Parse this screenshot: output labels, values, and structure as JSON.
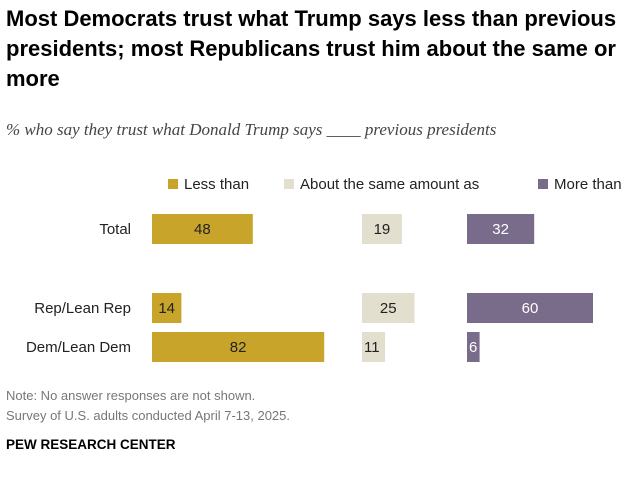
{
  "title": "Most Democrats trust what Trump says less than previous presidents; most Republicans trust him about the same or more",
  "subtitle": "% who say they trust what Donald Trump says ____ previous presidents",
  "chart_data": {
    "type": "bar",
    "orientation": "horizontal",
    "categories": [
      "Total",
      "Rep/Lean Rep",
      "Dem/Lean Dem"
    ],
    "series": [
      {
        "name": "Less than",
        "color": "#c8a42a",
        "values": [
          48,
          14,
          82
        ]
      },
      {
        "name": "About the same amount as",
        "color": "#e3dfcf",
        "values": [
          19,
          25,
          11
        ]
      },
      {
        "name": "More than",
        "color": "#796b8a",
        "values": [
          32,
          60,
          6
        ]
      }
    ],
    "xlim": [
      0,
      100
    ],
    "legend": "top"
  },
  "note": "Note: No answer responses are not shown.",
  "source": "Survey of U.S. adults conducted April 7-13, 2025.",
  "brand": "PEW RESEARCH CENTER"
}
